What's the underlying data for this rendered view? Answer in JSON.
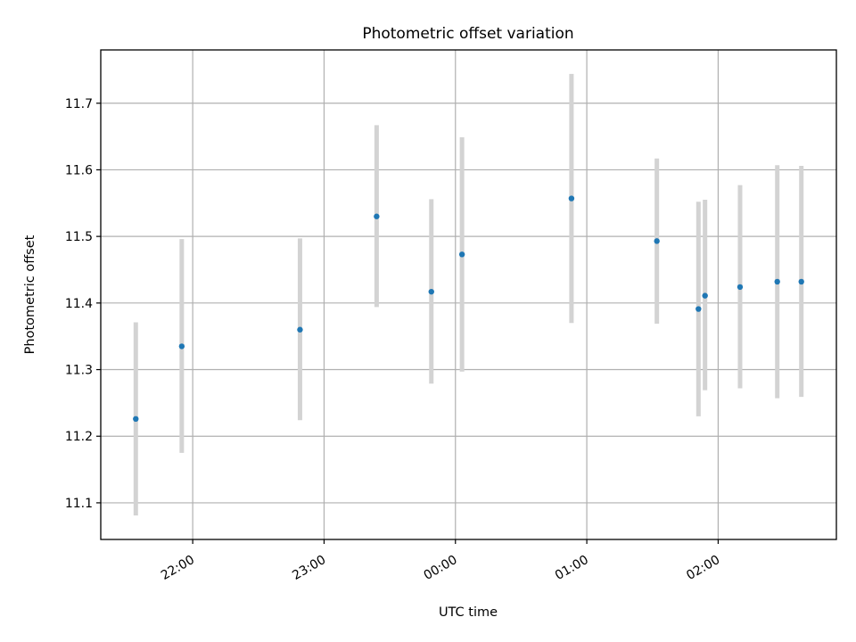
{
  "chart_data": {
    "type": "scatter",
    "title": "Photometric offset variation",
    "xlabel": "UTC time",
    "ylabel": "Photometric offset",
    "x_unit": "UTC clock time (hours after 21:00)",
    "xlim": [
      "21:18",
      "02:54"
    ],
    "ylim": [
      11.045,
      11.78
    ],
    "xticks": [
      "22:00",
      "23:00",
      "00:00",
      "01:00",
      "02:00"
    ],
    "yticks": [
      11.1,
      11.2,
      11.3,
      11.4,
      11.5,
      11.6,
      11.7
    ],
    "grid": true,
    "colors": {
      "point": "#1f77b4",
      "errorbar": "#d3d3d3"
    },
    "series": [
      {
        "points": [
          {
            "time": "21:34",
            "y": 11.226,
            "low": 11.081,
            "high": 11.371
          },
          {
            "time": "21:55",
            "y": 11.335,
            "low": 11.175,
            "high": 11.496
          },
          {
            "time": "22:49",
            "y": 11.36,
            "low": 11.224,
            "high": 11.497
          },
          {
            "time": "23:24",
            "y": 11.53,
            "low": 11.394,
            "high": 11.667
          },
          {
            "time": "23:49",
            "y": 11.417,
            "low": 11.279,
            "high": 11.556
          },
          {
            "time": "00:03",
            "y": 11.473,
            "low": 11.297,
            "high": 11.649
          },
          {
            "time": "00:53",
            "y": 11.557,
            "low": 11.37,
            "high": 11.744
          },
          {
            "time": "01:32",
            "y": 11.493,
            "low": 11.369,
            "high": 11.617
          },
          {
            "time": "01:51",
            "y": 11.391,
            "low": 11.23,
            "high": 11.552
          },
          {
            "time": "01:54",
            "y": 11.411,
            "low": 11.269,
            "high": 11.555
          },
          {
            "time": "02:10",
            "y": 11.424,
            "low": 11.272,
            "high": 11.577
          },
          {
            "time": "02:27",
            "y": 11.432,
            "low": 11.257,
            "high": 11.607
          },
          {
            "time": "02:38",
            "y": 11.432,
            "low": 11.259,
            "high": 11.606
          }
        ]
      }
    ]
  }
}
